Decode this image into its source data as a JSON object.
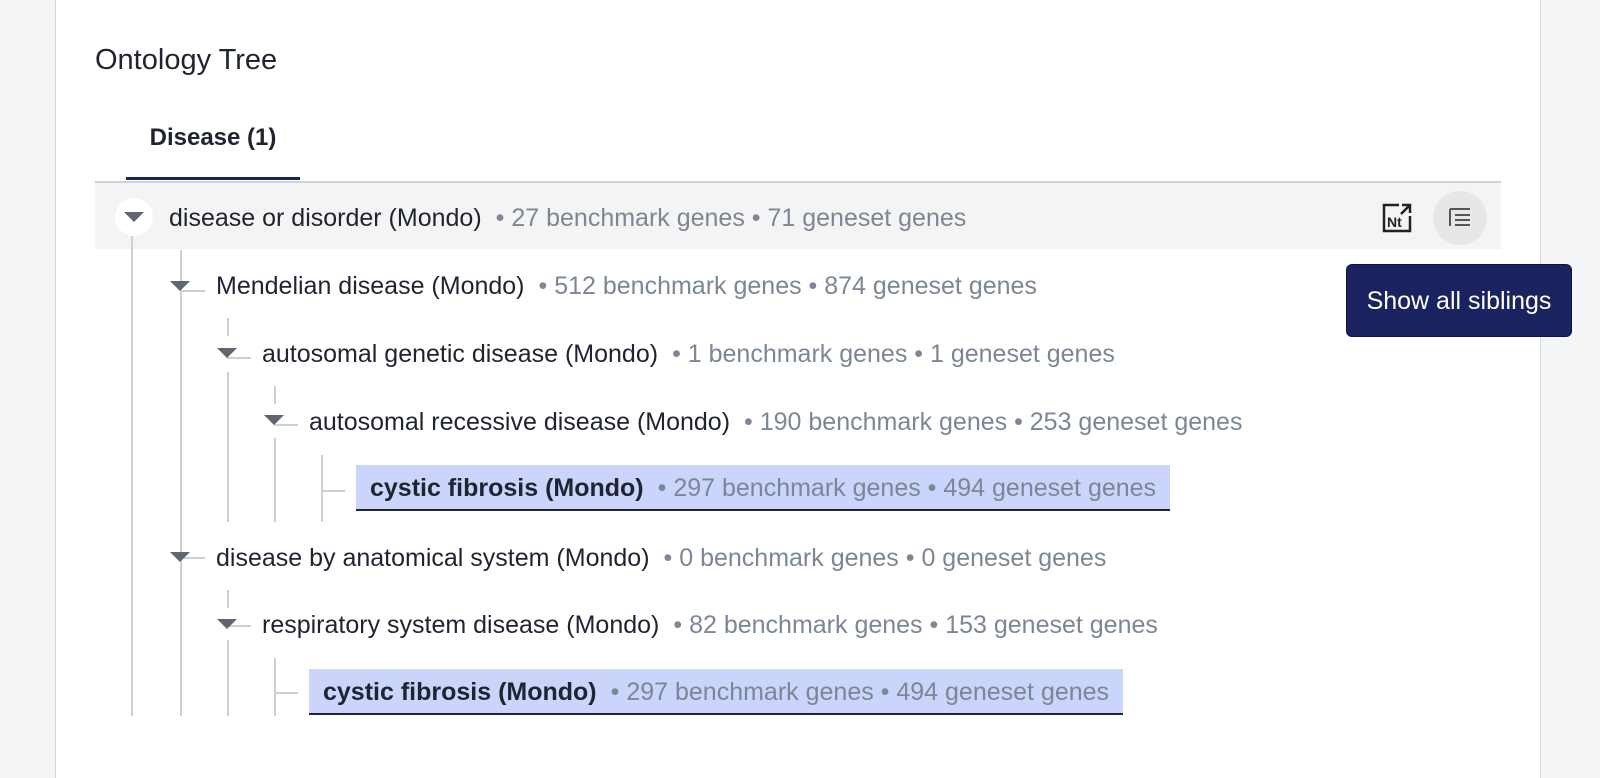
{
  "panel": {
    "title": "Ontology Tree"
  },
  "tabs": [
    {
      "label": "Disease (1)",
      "active": true
    }
  ],
  "tree": {
    "root": {
      "label": "disease or disorder (Mondo)",
      "meta": "• 27 benchmark genes • 71 geneset genes"
    },
    "nodes": [
      {
        "label": "Mendelian disease (Mondo)",
        "meta": "• 512 benchmark genes • 874 geneset genes",
        "depth": 1
      },
      {
        "label": "autosomal genetic disease (Mondo)",
        "meta": "• 1 benchmark genes • 1 geneset genes",
        "depth": 2
      },
      {
        "label": "autosomal recessive disease (Mondo)",
        "meta": "• 190 benchmark genes • 253 geneset genes",
        "depth": 3
      },
      {
        "label": "cystic fibrosis (Mondo)",
        "meta": "• 297 benchmark genes • 494 geneset genes",
        "depth": 4,
        "highlighted": true
      },
      {
        "label": "disease by anatomical system (Mondo)",
        "meta": "• 0 benchmark genes • 0 geneset genes",
        "depth": 1
      },
      {
        "label": "respiratory system disease (Mondo)",
        "meta": "• 82 benchmark genes • 153 geneset genes",
        "depth": 2
      },
      {
        "label": "cystic fibrosis (Mondo)",
        "meta": "• 297 benchmark genes • 494 geneset genes",
        "depth": 3,
        "highlighted": true
      }
    ]
  },
  "actions": {
    "nt_icon": "nt-export-icon",
    "siblings_icon": "tree-siblings-icon",
    "tooltip": "Show all siblings"
  },
  "colors": {
    "accent": "#1a2260",
    "highlight": "#cbd5fb",
    "meta_text": "#7b8794"
  }
}
